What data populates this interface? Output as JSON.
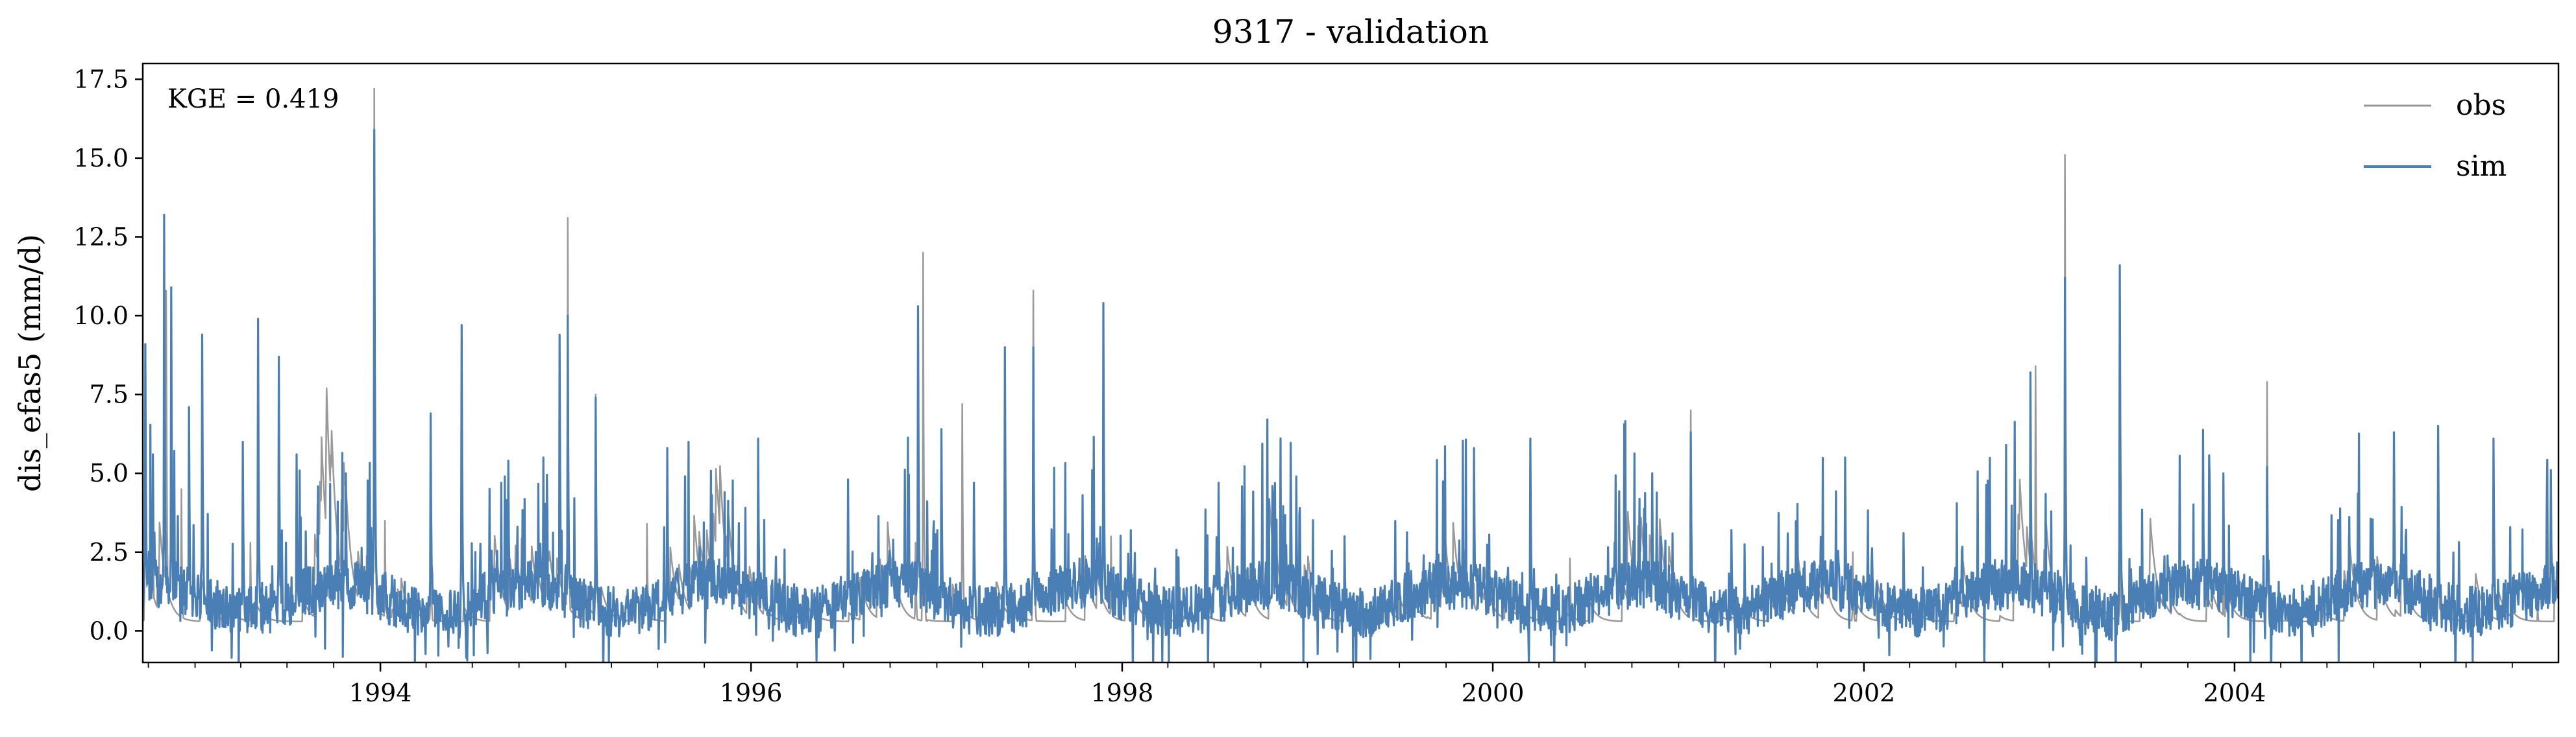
{
  "chart_data": {
    "type": "line",
    "title": "9317 - validation",
    "xlabel": "",
    "ylabel": "dis_efas5 (mm/d)",
    "annotation": "KGE = 0.419",
    "xlim": [
      "1992-09-20",
      "2005-09-30"
    ],
    "ylim": [
      -1.0,
      18.0
    ],
    "yticks": [
      0.0,
      2.5,
      5.0,
      7.5,
      10.0,
      12.5,
      15.0,
      17.5
    ],
    "ytick_labels": [
      "0.0",
      "2.5",
      "5.0",
      "7.5",
      "10.0",
      "12.5",
      "15.0",
      "17.5"
    ],
    "xtick_labels": [
      "1994",
      "1996",
      "1998",
      "2000",
      "2002",
      "2004"
    ],
    "xticks": [
      "1994-01-01",
      "1996-01-01",
      "1998-01-01",
      "2000-01-01",
      "2002-01-01",
      "2004-01-01"
    ],
    "legend_position": "top-right",
    "grid": false,
    "series": [
      {
        "name": "obs",
        "color": "#999999",
        "peaks": [
          [
            "1992-09-25",
            8.5
          ],
          [
            "1992-10-10",
            3.5
          ],
          [
            "1992-11-05",
            10.8
          ],
          [
            "1992-12-05",
            4.5
          ],
          [
            "1993-04-20",
            2.8
          ],
          [
            "1993-10-20",
            1.5
          ],
          [
            "1993-12-20",
            17.2
          ],
          [
            "1994-01-10",
            3.5
          ],
          [
            "1994-04-10",
            3.3
          ],
          [
            "1994-12-20",
            2.5
          ],
          [
            "1995-01-05",
            13.1
          ],
          [
            "1995-03-01",
            7.5
          ],
          [
            "1995-06-10",
            3.4
          ],
          [
            "1996-01-15",
            2.5
          ],
          [
            "1996-11-20",
            2.8
          ],
          [
            "1996-12-05",
            12.0
          ],
          [
            "1997-02-20",
            7.2
          ],
          [
            "1997-07-10",
            10.8
          ],
          [
            "1997-12-10",
            3.0
          ],
          [
            "1998-12-15",
            1.5
          ],
          [
            "1999-11-25",
            1.5
          ],
          [
            "2000-06-01",
            2.3
          ],
          [
            "2001-01-25",
            7.0
          ],
          [
            "2001-12-10",
            2.5
          ],
          [
            "2002-12-05",
            8.4
          ],
          [
            "2003-02-01",
            15.1
          ],
          [
            "2003-05-20",
            4.0
          ],
          [
            "2003-12-10",
            1.8
          ],
          [
            "2004-03-05",
            7.9
          ],
          [
            "2005-02-05",
            4.6
          ],
          [
            "2005-08-20",
            0.8
          ]
        ],
        "baseflow": 0.3
      },
      {
        "name": "sim",
        "color": "#4a7fb5",
        "peaks": [
          [
            "1992-09-25",
            9.1
          ],
          [
            "1992-10-10",
            5.6
          ],
          [
            "1992-11-01",
            13.2
          ],
          [
            "1992-11-15",
            10.9
          ],
          [
            "1992-12-20",
            7.1
          ],
          [
            "1993-01-15",
            9.4
          ],
          [
            "1993-04-05",
            6.0
          ],
          [
            "1993-05-05",
            9.9
          ],
          [
            "1993-06-15",
            8.7
          ],
          [
            "1993-07-20",
            5.6
          ],
          [
            "1993-10-25",
            5.0
          ],
          [
            "1993-12-20",
            15.9
          ],
          [
            "1994-04-10",
            6.9
          ],
          [
            "1994-06-10",
            9.7
          ],
          [
            "1994-09-10",
            5.4
          ],
          [
            "1994-12-20",
            9.4
          ],
          [
            "1995-01-05",
            10.0
          ],
          [
            "1995-03-01",
            7.4
          ],
          [
            "1995-07-20",
            5.8
          ],
          [
            "1995-11-10",
            4.4
          ],
          [
            "1996-01-15",
            6.1
          ],
          [
            "1996-07-10",
            4.8
          ],
          [
            "1996-11-25",
            10.3
          ],
          [
            "1997-01-10",
            6.4
          ],
          [
            "1997-03-15",
            4.7
          ],
          [
            "1997-05-15",
            9.0
          ],
          [
            "1997-07-10",
            9.0
          ],
          [
            "1997-11-25",
            10.4
          ],
          [
            "1998-07-10",
            4.7
          ],
          [
            "1998-12-10",
            4.9
          ],
          [
            "1999-03-15",
            3.0
          ],
          [
            "1999-11-25",
            5.8
          ],
          [
            "2000-03-15",
            6.1
          ],
          [
            "2000-11-10",
            5.0
          ],
          [
            "2001-01-25",
            6.3
          ],
          [
            "2001-04-15",
            3.2
          ],
          [
            "2001-11-25",
            5.5
          ],
          [
            "2002-03-20",
            3.1
          ],
          [
            "2002-11-25",
            8.2
          ],
          [
            "2003-02-01",
            11.2
          ],
          [
            "2003-05-20",
            11.6
          ],
          [
            "2003-12-10",
            5.0
          ],
          [
            "2004-03-05",
            5.2
          ],
          [
            "2004-11-10",
            6.3
          ],
          [
            "2005-02-05",
            6.5
          ],
          [
            "2005-05-25",
            6.1
          ],
          [
            "2005-09-15",
            5.1
          ]
        ],
        "baseflow": 0.5
      }
    ]
  }
}
